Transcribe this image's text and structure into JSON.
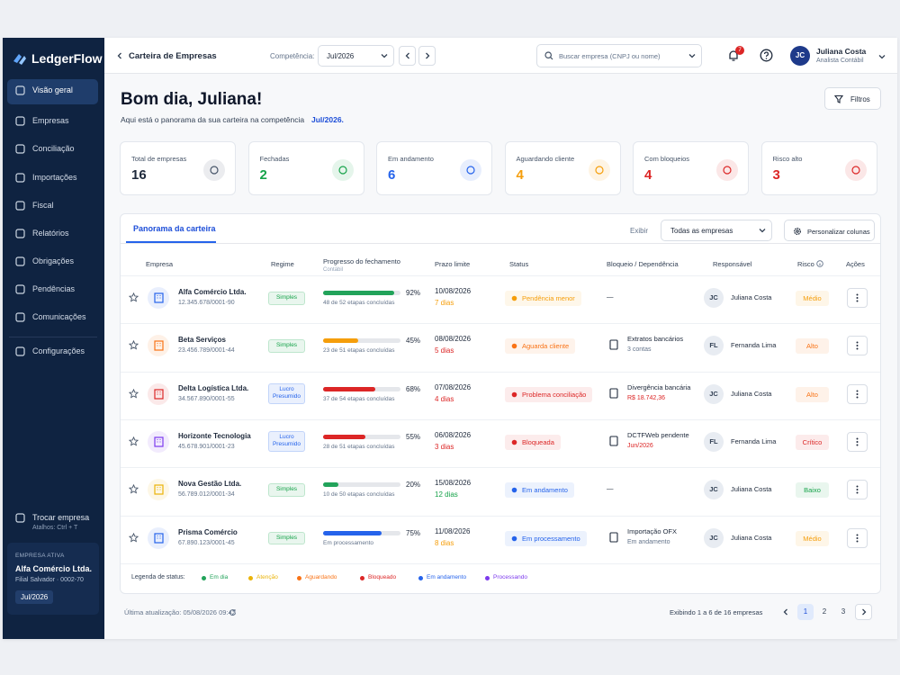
{
  "sidebar": {
    "brand": "LedgerFlow",
    "nav": [
      "Visão geral",
      "Empresas",
      "Conciliação",
      "Importações",
      "Fiscal",
      "Relatórios",
      "Obrigações",
      "Pendências",
      "Comunicações",
      "Configurações"
    ],
    "switch_title": "Trocar empresa",
    "switch_hint": "Atalhos: Ctrl + T",
    "active_label": "EMPRESA ATIVA",
    "active_name": "Alfa Comércio Ltda.",
    "active_branch": "Filial Salvador · 0002-70",
    "active_period": "Jul/2026"
  },
  "topbar": {
    "title": "Carteira de Empresas",
    "period_label": "Competência:",
    "period_value": "Jul/2026",
    "search_placeholder": "Buscar empresa (CNPJ ou nome)",
    "notifications": 7,
    "user_initials": "JC",
    "user_name": "Juliana Costa",
    "user_role": "Analista Contábil"
  },
  "header": {
    "greeting": "Bom dia, Juliana!",
    "subtitle": "Aqui está o panorama da sua carteira na competência",
    "subtitle_period": "Jul/2026.",
    "filters": "Filtros"
  },
  "stats": [
    {
      "label": "Total de empresas",
      "value": 16,
      "color": "#1e293b",
      "accent": "#475569"
    },
    {
      "label": "Fechadas",
      "value": 2,
      "color": "#16a34a",
      "accent": "#16a34a"
    },
    {
      "label": "Em andamento",
      "value": 6,
      "color": "#2563eb",
      "accent": "#2563eb"
    },
    {
      "label": "Aguardando cliente",
      "value": 4,
      "color": "#f59e0b",
      "accent": "#f59e0b"
    },
    {
      "label": "Com bloqueios",
      "value": 4,
      "color": "#dc2626",
      "accent": "#dc2626"
    },
    {
      "label": "Risco alto",
      "value": 3,
      "color": "#dc2626",
      "accent": "#dc2626"
    }
  ],
  "table": {
    "tab": "Panorama da carteira",
    "show_label": "Exibir",
    "show_value": "Todas as empresas",
    "customize": "Personalizar colunas",
    "columns": [
      "Empresa",
      "Regime",
      "Progresso do fechamento",
      "Prazo limite",
      "Status",
      "Bloqueio / Dependência",
      "Responsável",
      "Risco",
      "Ações"
    ],
    "progress_sub": "Contábil",
    "rows": [
      {
        "name": "Alfa Comércio Ltda.",
        "cnpj": "12.345.678/0001-90",
        "icon_color": "#2563eb",
        "regime": "Simples",
        "regime_color": "#16a34a",
        "progress": 92,
        "progress_label": "92%",
        "bar_color": "#22a35a",
        "steps": "48 de 52 etapas concluídas",
        "date": "10/08/2026",
        "days": "7 dias",
        "days_color": "#f59e0b",
        "status": "Pendência menor",
        "status_color": "#f59e0b",
        "block": "—",
        "block_sub": null,
        "block_sub_color": "#64748b",
        "resp_initials": "JC",
        "resp_name": "Juliana Costa",
        "risk": "Médio",
        "risk_color": "#f59e0b"
      },
      {
        "name": "Beta Serviços",
        "cnpj": "23.456.789/0001-44",
        "icon_color": "#f97316",
        "regime": "Simples",
        "regime_color": "#16a34a",
        "progress": 45,
        "progress_label": "45%",
        "bar_color": "#f59e0b",
        "steps": "23 de 51 etapas concluídas",
        "date": "08/08/2026",
        "days": "5 dias",
        "days_color": "#dc2626",
        "status": "Aguarda cliente",
        "status_color": "#f97316",
        "block": "Extratos bancários",
        "block_sub": "3 contas",
        "block_sub_color": "#64748b",
        "resp_initials": "FL",
        "resp_name": "Fernanda Lima",
        "risk": "Alto",
        "risk_color": "#f97316"
      },
      {
        "name": "Delta Logística Ltda.",
        "cnpj": "34.567.890/0001-55",
        "icon_color": "#dc2626",
        "regime": "Lucro Presumido",
        "regime_color": "#2563eb",
        "progress": 68,
        "progress_label": "68%",
        "bar_color": "#dc2626",
        "steps": "37 de 54 etapas concluídas",
        "date": "07/08/2026",
        "days": "4 dias",
        "days_color": "#dc2626",
        "status": "Problema conciliação",
        "status_color": "#dc2626",
        "block": "Divergência bancária",
        "block_sub": "R$ 18.742,36",
        "block_sub_color": "#dc2626",
        "resp_initials": "JC",
        "resp_name": "Juliana Costa",
        "risk": "Alto",
        "risk_color": "#f97316"
      },
      {
        "name": "Horizonte Tecnologia",
        "cnpj": "45.678.901/0001-23",
        "icon_color": "#7c3aed",
        "regime": "Lucro Presumido",
        "regime_color": "#2563eb",
        "progress": 55,
        "progress_label": "55%",
        "bar_color": "#dc2626",
        "steps": "28 de 51 etapas concluídas",
        "date": "06/08/2026",
        "days": "3 dias",
        "days_color": "#dc2626",
        "status": "Bloqueada",
        "status_color": "#dc2626",
        "block": "DCTFWeb pendente",
        "block_sub": "Jun/2026",
        "block_sub_color": "#dc2626",
        "resp_initials": "FL",
        "resp_name": "Fernanda Lima",
        "risk": "Crítico",
        "risk_color": "#dc2626"
      },
      {
        "name": "Nova Gestão Ltda.",
        "cnpj": "56.789.012/0001-34",
        "icon_color": "#eab308",
        "regime": "Simples",
        "regime_color": "#16a34a",
        "progress": 20,
        "progress_label": "20%",
        "bar_color": "#22a35a",
        "steps": "10 de 50 etapas concluídas",
        "date": "15/08/2026",
        "days": "12 dias",
        "days_color": "#16a34a",
        "status": "Em andamento",
        "status_color": "#2563eb",
        "block": "—",
        "block_sub": null,
        "block_sub_color": "#64748b",
        "resp_initials": "JC",
        "resp_name": "Juliana Costa",
        "risk": "Baixo",
        "risk_color": "#16a34a"
      },
      {
        "name": "Prisma Comércio",
        "cnpj": "67.890.123/0001-45",
        "icon_color": "#2563eb",
        "regime": "Simples",
        "regime_color": "#16a34a",
        "progress": 75,
        "progress_label": "75%",
        "bar_color": "#2563eb",
        "steps": "Em processamento",
        "date": "11/08/2026",
        "days": "8 dias",
        "days_color": "#f59e0b",
        "status": "Em processamento",
        "status_color": "#2563eb",
        "block": "Importação OFX",
        "block_sub": "Em andamento",
        "block_sub_color": "#64748b",
        "resp_initials": "JC",
        "resp_name": "Juliana Costa",
        "risk": "Médio",
        "risk_color": "#f59e0b"
      }
    ],
    "legend_title": "Legenda de status:",
    "legend": [
      {
        "name": "Em dia",
        "color": "#22a35a"
      },
      {
        "name": "Atenção",
        "color": "#eab308"
      },
      {
        "name": "Aguardando",
        "color": "#f97316"
      },
      {
        "name": "Bloqueado",
        "color": "#dc2626"
      },
      {
        "name": "Em andamento",
        "color": "#2563eb"
      },
      {
        "name": "Processando",
        "color": "#7c3aed"
      }
    ]
  },
  "footer": {
    "updated": "Última atualização: 05/08/2026 09:42",
    "showing": "Exibindo 1 a 6 de 16 empresas",
    "pages": [
      1,
      2,
      3
    ]
  }
}
